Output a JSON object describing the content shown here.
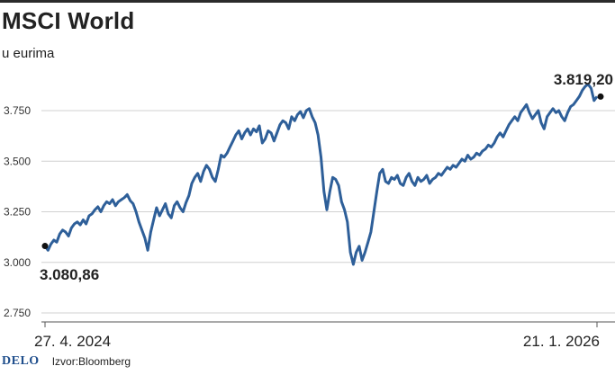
{
  "header": {
    "title": "MSCI World",
    "subtitle": "u eurima"
  },
  "footer": {
    "logo": "DELO",
    "source": "Izvor:Bloomberg"
  },
  "chart_data": {
    "type": "line",
    "title": "MSCI World",
    "subtitle": "u eurima",
    "xlabel": "",
    "ylabel": "",
    "x_range": [
      "27. 4. 2024",
      "21. 1. 2026"
    ],
    "x_tick_labels": [
      "27. 4. 2024",
      "21. 1. 2026"
    ],
    "ylim": [
      2700,
      3950
    ],
    "y_ticks": [
      2750,
      3000,
      3250,
      3500,
      3750
    ],
    "y_tick_labels": [
      "2.750",
      "3.000",
      "3.250",
      "3.500",
      "3.750"
    ],
    "grid": "horizontal",
    "line_color": "#2e5f99",
    "annotations": [
      {
        "label": "3.080,86",
        "x_index": 0,
        "value": 3080.86,
        "placement": "below"
      },
      {
        "label": "3.819,20",
        "x_index": "last",
        "value": 3819.2,
        "placement": "above"
      }
    ],
    "series": [
      {
        "values": [
          3080.86,
          3060,
          3090,
          3110,
          3100,
          3140,
          3160,
          3150,
          3130,
          3170,
          3190,
          3200,
          3185,
          3210,
          3190,
          3230,
          3240,
          3260,
          3275,
          3250,
          3280,
          3300,
          3290,
          3310,
          3280,
          3300,
          3310,
          3320,
          3335,
          3305,
          3290,
          3250,
          3200,
          3160,
          3120,
          3060,
          3150,
          3210,
          3270,
          3230,
          3260,
          3290,
          3240,
          3220,
          3280,
          3300,
          3270,
          3250,
          3295,
          3330,
          3390,
          3420,
          3440,
          3400,
          3450,
          3480,
          3460,
          3420,
          3400,
          3460,
          3530,
          3520,
          3540,
          3570,
          3600,
          3630,
          3650,
          3610,
          3640,
          3660,
          3630,
          3660,
          3645,
          3675,
          3590,
          3610,
          3650,
          3640,
          3600,
          3640,
          3680,
          3700,
          3690,
          3660,
          3720,
          3700,
          3730,
          3745,
          3715,
          3750,
          3760,
          3720,
          3690,
          3630,
          3520,
          3350,
          3260,
          3350,
          3420,
          3410,
          3380,
          3300,
          3260,
          3200,
          3050,
          2990,
          3050,
          3080,
          3010,
          3050,
          3100,
          3150,
          3250,
          3350,
          3440,
          3460,
          3400,
          3390,
          3420,
          3410,
          3430,
          3390,
          3380,
          3420,
          3440,
          3400,
          3380,
          3420,
          3400,
          3410,
          3430,
          3390,
          3410,
          3420,
          3440,
          3430,
          3450,
          3470,
          3460,
          3480,
          3470,
          3490,
          3510,
          3500,
          3530,
          3510,
          3520,
          3540,
          3530,
          3550,
          3560,
          3580,
          3570,
          3590,
          3620,
          3640,
          3620,
          3650,
          3680,
          3700,
          3720,
          3700,
          3740,
          3760,
          3780,
          3740,
          3710,
          3730,
          3750,
          3690,
          3660,
          3720,
          3740,
          3760,
          3740,
          3750,
          3720,
          3700,
          3740,
          3770,
          3780,
          3800,
          3820,
          3850,
          3870,
          3880,
          3860,
          3800,
          3819.2
        ]
      }
    ]
  }
}
